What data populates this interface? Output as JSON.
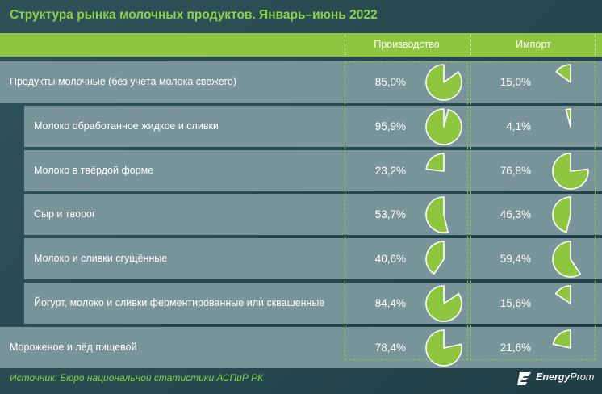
{
  "title": "Структура рынка молочных продуктов. Январь–июнь 2022",
  "header": {
    "col_production": "Производство",
    "col_import": "Импорт"
  },
  "source": "Источник: Бюро национальной статистики АСПиР РК",
  "logo": {
    "bold": "Energy",
    "rest": "Prom"
  },
  "colors": {
    "accent": "#8ec63f",
    "pie_fill": "#8ec63f",
    "row_bg": "#7a959a",
    "background": "#2a4a50"
  },
  "chart_data": {
    "type": "table",
    "title": "Структура рынка молочных продуктов. Январь–июнь 2022",
    "columns": [
      "Производство",
      "Импорт"
    ],
    "rows": [
      {
        "label": "Продукты молочные (без учёта молока свежего)",
        "indent": false,
        "production": 85.0,
        "import": 15.0,
        "production_text": "85,0%",
        "import_text": "15,0%"
      },
      {
        "label": "Молоко обработанное жидкое и сливки",
        "indent": true,
        "production": 95.9,
        "import": 4.1,
        "production_text": "95,9%",
        "import_text": "4,1%"
      },
      {
        "label": "Молоко в твёрдой форме",
        "indent": true,
        "production": 23.2,
        "import": 76.8,
        "production_text": "23,2%",
        "import_text": "76,8%"
      },
      {
        "label": "Сыр и творог",
        "indent": true,
        "production": 53.7,
        "import": 46.3,
        "production_text": "53,7%",
        "import_text": "46,3%"
      },
      {
        "label": "Молоко и сливки сгущённые",
        "indent": true,
        "production": 40.6,
        "import": 59.4,
        "production_text": "40,6%",
        "import_text": "59,4%"
      },
      {
        "label": "Йогурт, молоко и сливки ферментированные или сквашенные",
        "indent": true,
        "production": 84.4,
        "import": 15.6,
        "production_text": "84,4%",
        "import_text": "15,6%"
      },
      {
        "label": "Мороженое и лёд пищевой",
        "indent": false,
        "production": 78.4,
        "import": 21.6,
        "production_text": "78,4%",
        "import_text": "21,6%"
      }
    ]
  }
}
